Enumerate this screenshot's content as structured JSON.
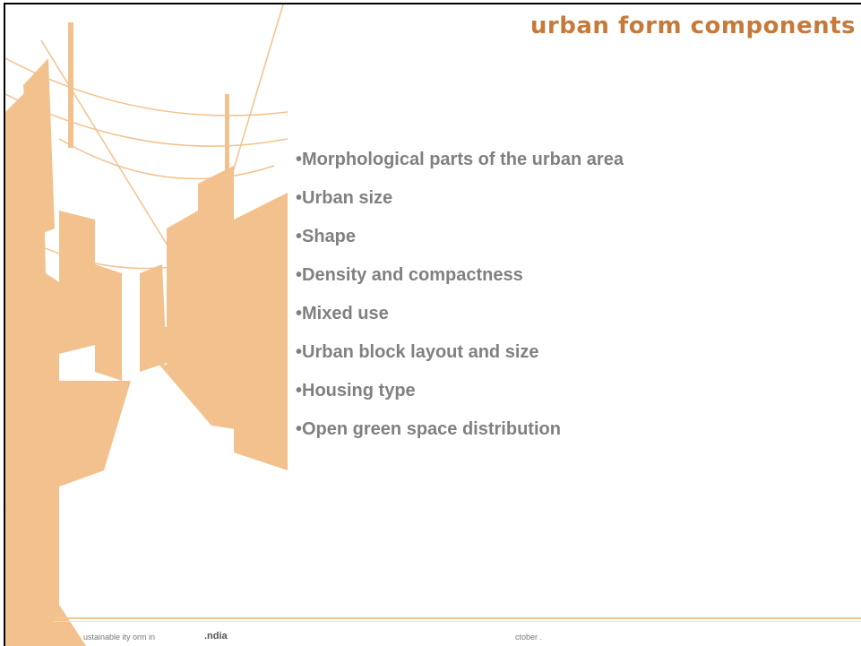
{
  "header": {
    "title": "urban form components"
  },
  "bullets": [
    "•Morphological parts of the urban area",
    "•Urban size",
    "•Shape",
    "•Density and compactness",
    "•Mixed use",
    "•Urban block layout and size",
    "•Housing type",
    "•Open green space distribution"
  ],
  "footer": {
    "left_text": "ustainable ity orm in",
    "left_emphasis": ".ndia",
    "right": "ctober ."
  }
}
